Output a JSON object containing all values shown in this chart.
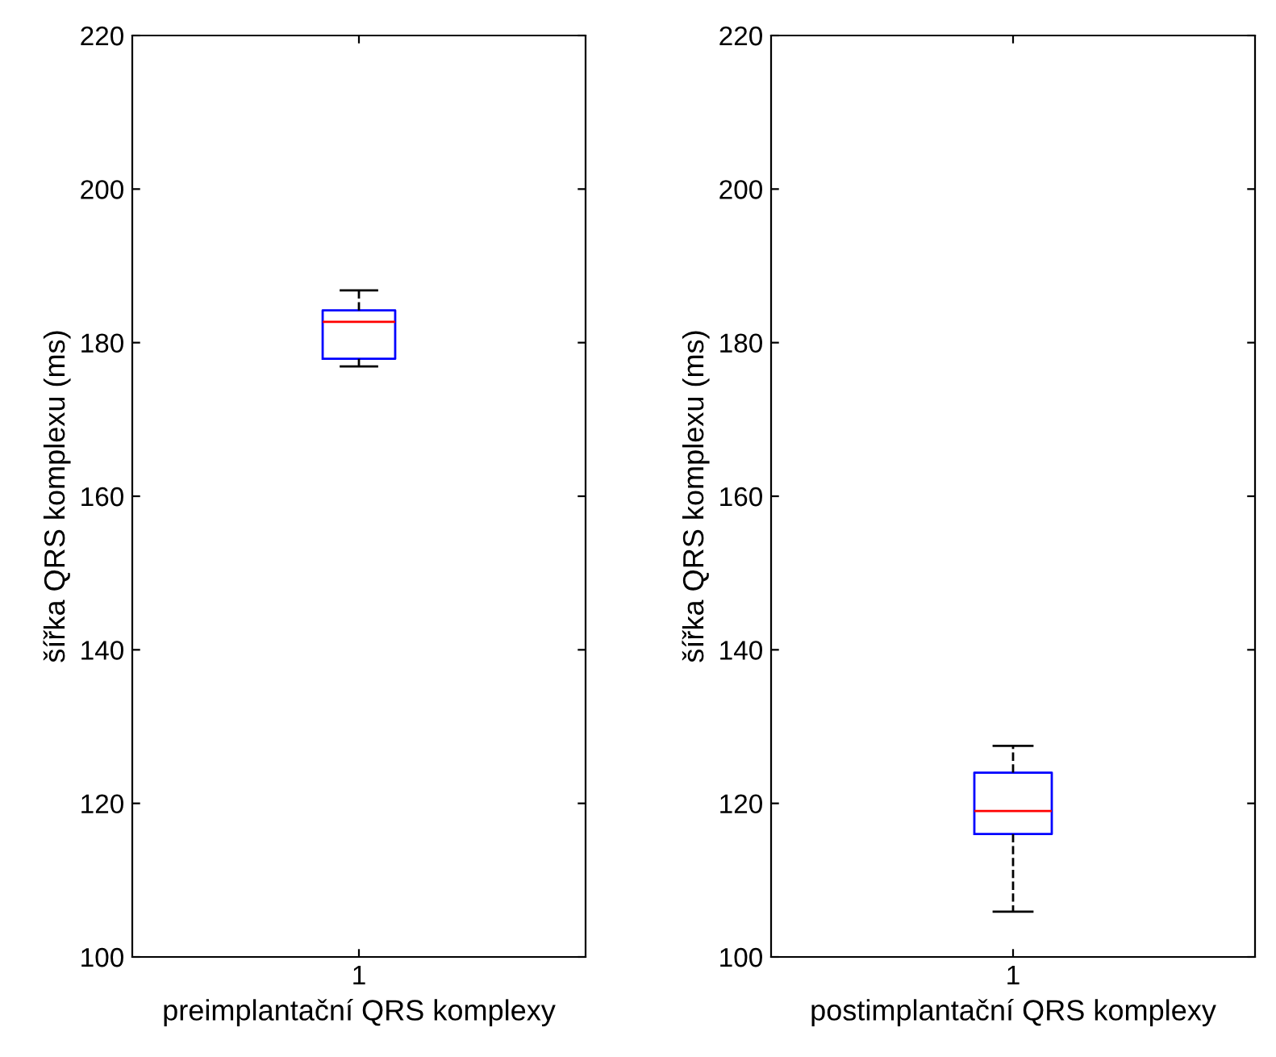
{
  "chart_data": [
    {
      "type": "box",
      "categories": [
        "1"
      ],
      "xlabel": "preimplantační QRS komplexy",
      "ylabel": "šířka QRS komplexu (ms)",
      "ylim": [
        100,
        220
      ],
      "yticks": [
        100,
        120,
        140,
        160,
        180,
        200,
        220
      ],
      "grid": false,
      "line_style": "dashed",
      "color": "#0000ff",
      "boxes": [
        {
          "low": 176.9,
          "q1": 177.9,
          "median": 182.7,
          "q3": 184.2,
          "high": 186.8
        }
      ]
    },
    {
      "type": "box",
      "categories": [
        "1"
      ],
      "xlabel": "postimplantační QRS komplexy",
      "ylabel": "šířka QRS komplexu (ms)",
      "ylim": [
        100,
        220
      ],
      "yticks": [
        100,
        120,
        140,
        160,
        180,
        200,
        220
      ],
      "grid": false,
      "line_style": "dashed",
      "color": "#0000ff",
      "boxes": [
        {
          "low": 105.9,
          "q1": 116.0,
          "median": 119.0,
          "q3": 124.0,
          "high": 127.5
        }
      ]
    }
  ]
}
